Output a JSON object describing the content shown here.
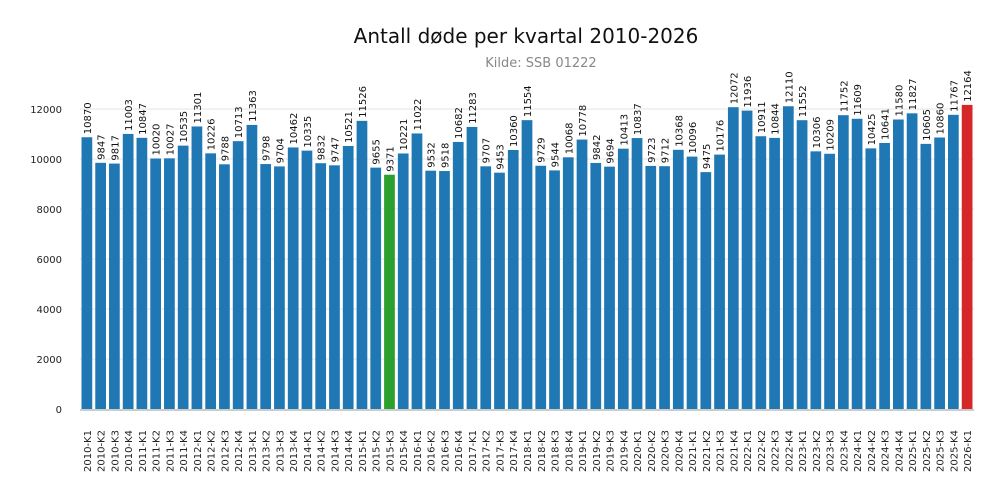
{
  "chart_data": {
    "type": "bar",
    "title": "Antall døde per kvartal 2010-2026",
    "subtitle": "Kilde: SSB 01222",
    "xlabel": "",
    "ylabel": "",
    "ylim": [
      0,
      13000
    ],
    "yticks": [
      0,
      2000,
      4000,
      6000,
      8000,
      10000,
      12000
    ],
    "grid": true,
    "categories": [
      "2010-K1",
      "2010-K2",
      "2010-K3",
      "2010-K4",
      "2011-K1",
      "2011-K2",
      "2011-K3",
      "2011-K4",
      "2012-K1",
      "2012-K2",
      "2012-K3",
      "2012-K4",
      "2013-K1",
      "2013-K2",
      "2013-K3",
      "2013-K4",
      "2014-K1",
      "2014-K2",
      "2014-K3",
      "2014-K4",
      "2015-K1",
      "2015-K2",
      "2015-K3",
      "2015-K4",
      "2016-K1",
      "2016-K2",
      "2016-K3",
      "2016-K4",
      "2017-K1",
      "2017-K2",
      "2017-K3",
      "2017-K4",
      "2018-K1",
      "2018-K2",
      "2018-K3",
      "2018-K4",
      "2019-K1",
      "2019-K2",
      "2019-K3",
      "2019-K4",
      "2020-K1",
      "2020-K2",
      "2020-K3",
      "2020-K4",
      "2021-K1",
      "2021-K2",
      "2021-K3",
      "2021-K4",
      "2022-K1",
      "2022-K2",
      "2022-K3",
      "2022-K4",
      "2023-K1",
      "2023-K2",
      "2023-K3",
      "2023-K4",
      "2024-K1",
      "2024-K2",
      "2024-K3",
      "2024-K4",
      "2025-K1",
      "2025-K2",
      "2025-K3",
      "2025-K4",
      "2026-K1"
    ],
    "values": [
      10870,
      9847,
      9817,
      11003,
      10847,
      10020,
      10027,
      10535,
      11301,
      10226,
      9788,
      10713,
      11363,
      9798,
      9704,
      10462,
      10335,
      9832,
      9747,
      10521,
      11526,
      9655,
      9371,
      10221,
      11022,
      9532,
      9518,
      10682,
      11283,
      9707,
      9453,
      10360,
      11554,
      9729,
      9544,
      10068,
      10778,
      9842,
      9694,
      10413,
      10837,
      9723,
      9712,
      10368,
      10096,
      9475,
      10176,
      12072,
      11936,
      10911,
      10844,
      12110,
      11552,
      10306,
      10209,
      11752,
      11609,
      10425,
      10641,
      11580,
      11827,
      10605,
      10860,
      11767,
      12164
    ],
    "colors": {
      "default": "#1f77b4",
      "min": "#2ca02c",
      "max": "#d62728"
    },
    "highlight": {
      "min_category": "2015-K3",
      "max_category": "2026-K1"
    }
  }
}
